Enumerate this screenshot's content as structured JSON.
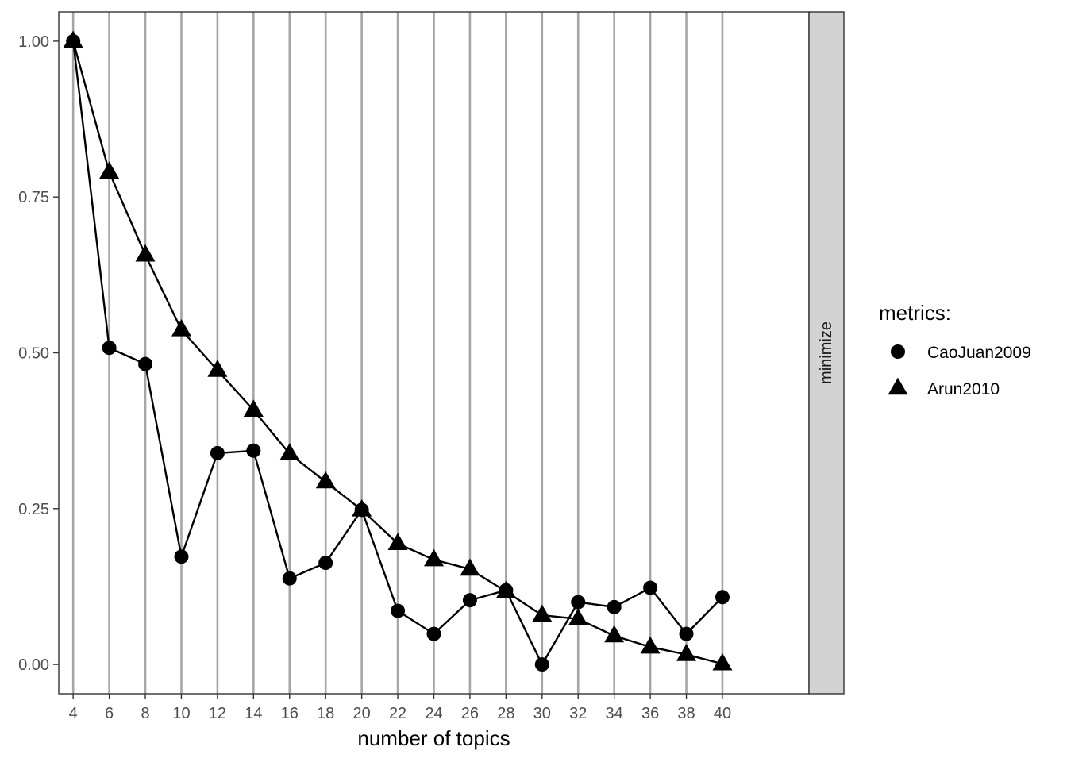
{
  "chart_data": {
    "type": "line",
    "x": [
      4,
      6,
      8,
      10,
      12,
      14,
      16,
      18,
      20,
      22,
      24,
      26,
      28,
      30,
      32,
      34,
      36,
      38,
      40
    ],
    "series": [
      {
        "name": "CaoJuan2009",
        "marker": "circle",
        "values": [
          1.0,
          0.508,
          0.482,
          0.173,
          0.339,
          0.343,
          0.138,
          0.163,
          0.248,
          0.086,
          0.049,
          0.103,
          0.119,
          0.0,
          0.1,
          0.092,
          0.123,
          0.049,
          0.108
        ]
      },
      {
        "name": "Arun2010",
        "marker": "triangle",
        "values": [
          1.0,
          0.79,
          0.657,
          0.537,
          0.472,
          0.408,
          0.338,
          0.293,
          0.248,
          0.194,
          0.168,
          0.153,
          0.117,
          0.079,
          0.073,
          0.046,
          0.028,
          0.016,
          0.001
        ]
      }
    ],
    "xlabel": "number of topics",
    "ylabel": "",
    "xlim": [
      3.2,
      44.8
    ],
    "ylim": [
      -0.047,
      1.047
    ],
    "xticks": [
      "4",
      "6",
      "8",
      "10",
      "12",
      "14",
      "16",
      "18",
      "20",
      "22",
      "24",
      "26",
      "28",
      "30",
      "32",
      "34",
      "36",
      "38",
      "40"
    ],
    "yticks": [
      {
        "value": 0,
        "label": "0.00"
      },
      {
        "value": 0.25,
        "label": "0.25"
      },
      {
        "value": 0.5,
        "label": "0.50"
      },
      {
        "value": 0.75,
        "label": "0.75"
      },
      {
        "value": 1.0,
        "label": "1.00"
      }
    ],
    "facet_strip": "minimize",
    "legend": {
      "title": "metrics:",
      "position": "right"
    },
    "grid": "vertical-major-only",
    "colors": {
      "line": "#000000",
      "grid": "#a6a6a6",
      "strip_fill": "#d3d3d3",
      "tick_text": "#4d4d4d"
    }
  }
}
